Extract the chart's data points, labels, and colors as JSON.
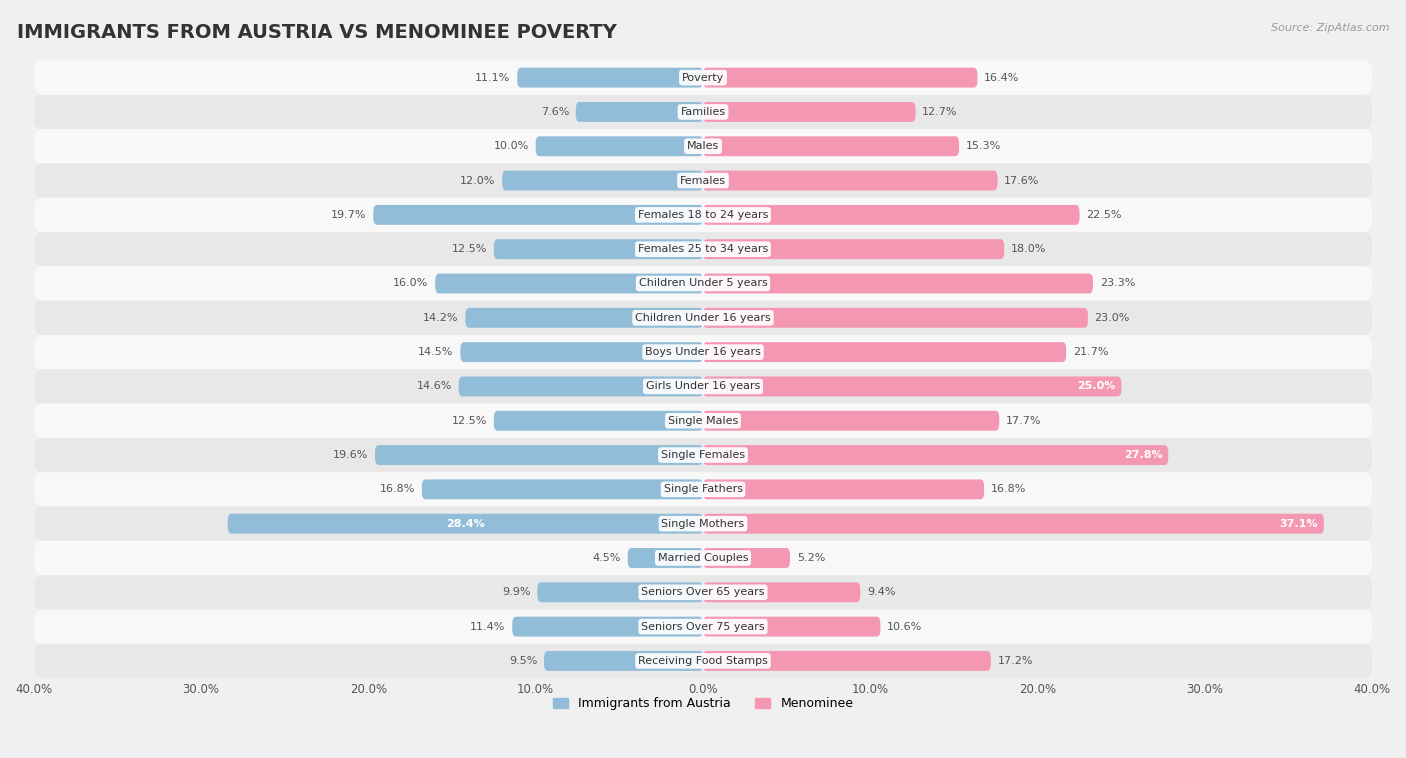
{
  "title": "IMMIGRANTS FROM AUSTRIA VS MENOMINEE POVERTY",
  "source": "Source: ZipAtlas.com",
  "categories": [
    "Poverty",
    "Families",
    "Males",
    "Females",
    "Females 18 to 24 years",
    "Females 25 to 34 years",
    "Children Under 5 years",
    "Children Under 16 years",
    "Boys Under 16 years",
    "Girls Under 16 years",
    "Single Males",
    "Single Females",
    "Single Fathers",
    "Single Mothers",
    "Married Couples",
    "Seniors Over 65 years",
    "Seniors Over 75 years",
    "Receiving Food Stamps"
  ],
  "austria_values": [
    11.1,
    7.6,
    10.0,
    12.0,
    19.7,
    12.5,
    16.0,
    14.2,
    14.5,
    14.6,
    12.5,
    19.6,
    16.8,
    28.4,
    4.5,
    9.9,
    11.4,
    9.5
  ],
  "menominee_values": [
    16.4,
    12.7,
    15.3,
    17.6,
    22.5,
    18.0,
    23.3,
    23.0,
    21.7,
    25.0,
    17.7,
    27.8,
    16.8,
    37.1,
    5.2,
    9.4,
    10.6,
    17.2
  ],
  "austria_color": "#92bdd8",
  "menominee_color": "#f497b2",
  "austria_label": "Immigrants from Austria",
  "menominee_label": "Menominee",
  "axis_max": 40.0,
  "background_color": "#f0f0f0",
  "row_colors_odd": "#f8f8f8",
  "row_colors_even": "#e8e8e8",
  "title_fontsize": 14,
  "label_fontsize": 8,
  "value_fontsize": 8,
  "legend_fontsize": 9,
  "white_text_threshold": 25.0
}
